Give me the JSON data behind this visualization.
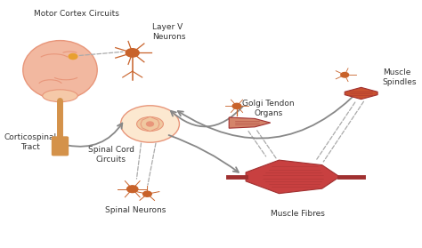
{
  "bg_color": "#ffffff",
  "title": "",
  "labels": {
    "motor_cortex": "Motor Cortex Circuits",
    "layer_v": "Layer V\nNeurons",
    "corticospinal": "Corticospinal\nTract",
    "spinal_cord": "Spinal Cord\nCircuits",
    "spinal_neurons": "Spinal Neurons",
    "golgi": "Golgi Tendon\nOrgans",
    "muscle_spindles": "Muscle\nSpindles",
    "muscle_fibres": "Muscle Fibres"
  },
  "colors": {
    "brain_fill": "#f2b8a0",
    "brain_outline": "#e8967a",
    "spinal_gray": "#f0c8a0",
    "spinal_white": "#fce8d0",
    "neuron_color": "#c8622a",
    "muscle_color": "#c84040",
    "muscle_dark": "#a03030",
    "tendon_color": "#d4846a",
    "arrow_color": "#888888",
    "dashed_color": "#aaaaaa",
    "text_color": "#333333",
    "tract_color": "#d4924a",
    "spindle_color": "#c85030"
  }
}
